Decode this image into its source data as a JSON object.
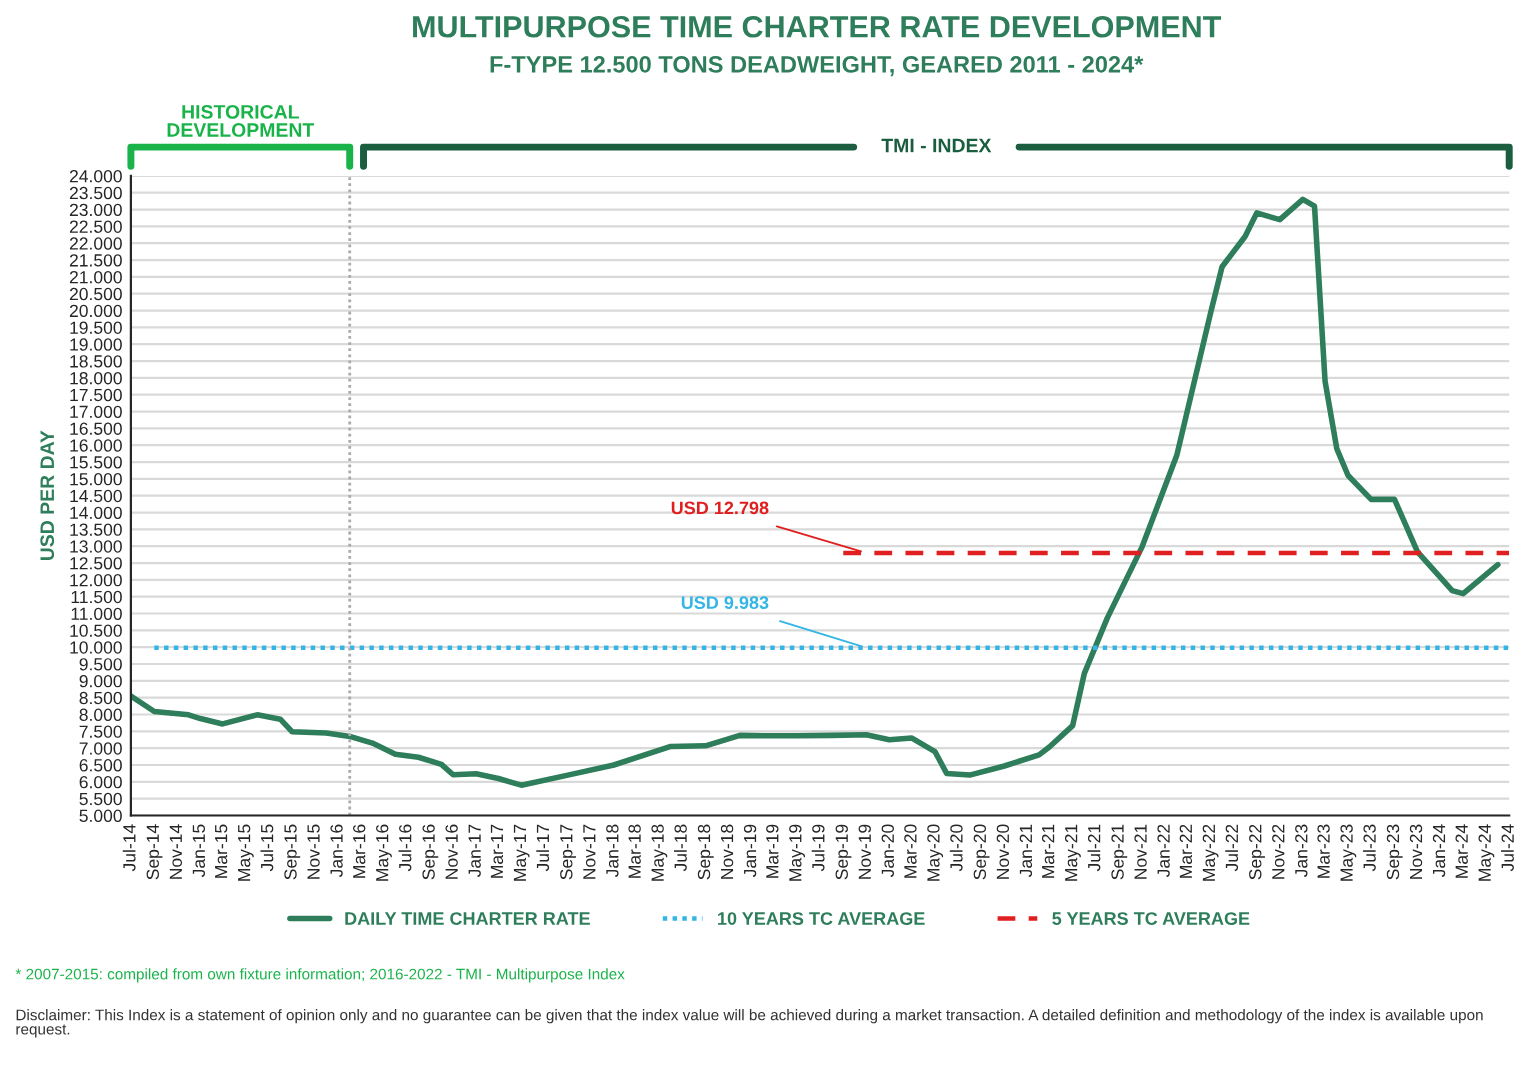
{
  "chart_data": {
    "type": "line",
    "title": "MULTIPURPOSE TIME CHARTER RATE DEVELOPMENT",
    "subtitle": "F-TYPE 12.500 TONS DEADWEIGHT, GEARED 2011 - 2024*",
    "ylabel": "USD PER DAY",
    "series": [
      {
        "name": "DAILY TIME CHARTER RATE",
        "color": "#2e7d5b",
        "line_style": "solid",
        "x": [
          "2014-07",
          "2014-09",
          "2014-12",
          "2015-01",
          "2015-03",
          "2015-06",
          "2015-08",
          "2015-09",
          "2015-12",
          "2016-02",
          "2016-04",
          "2016-06",
          "2016-08",
          "2016-10",
          "2016-11",
          "2017-01",
          "2017-03",
          "2017-05",
          "2017-09",
          "2018-01",
          "2018-06",
          "2018-09",
          "2018-12",
          "2019-02",
          "2019-05",
          "2019-08",
          "2019-11",
          "2020-01",
          "2020-03",
          "2020-05",
          "2020-06",
          "2020-08",
          "2020-11",
          "2021-02",
          "2021-03",
          "2021-05",
          "2021-06",
          "2021-08",
          "2021-11",
          "2022-02",
          "2022-05",
          "2022-06",
          "2022-08",
          "2022-09",
          "2022-11",
          "2023-01",
          "2023-02",
          "2023-03",
          "2023-04",
          "2023-05",
          "2023-07",
          "2023-09",
          "2023-11",
          "2024-02",
          "2024-03",
          "2024-06"
        ],
        "values": [
          8550,
          8090,
          7990,
          7880,
          7720,
          7990,
          7860,
          7490,
          7450,
          7350,
          7150,
          6820,
          6730,
          6520,
          6210,
          6240,
          6100,
          5900,
          6200,
          6500,
          7050,
          7070,
          7380,
          7370,
          7370,
          7380,
          7400,
          7250,
          7300,
          6900,
          6250,
          6200,
          6470,
          6800,
          7040,
          7670,
          9220,
          10870,
          12980,
          15700,
          19900,
          21300,
          22200,
          22900,
          22700,
          23300,
          23100,
          17900,
          15900,
          15100,
          14390,
          14390,
          12830,
          11680,
          11590,
          12450
        ]
      },
      {
        "name": "10 YEARS TC AVERAGE",
        "color": "#33b5e5",
        "line_style": "dotted",
        "x": [
          "2014-09",
          "2024-07"
        ],
        "values": [
          9983,
          9983
        ]
      },
      {
        "name": "5 YEARS TC AVERAGE",
        "color": "#e02020",
        "line_style": "dashed",
        "x": [
          "2019-09",
          "2024-07"
        ],
        "values": [
          12798,
          12798
        ]
      }
    ],
    "ref_lines": [
      {
        "axis": "x",
        "value": "2016-02",
        "color": "#aaaaaa",
        "line_style": "dotted"
      }
    ],
    "annotations": [
      "HISTORICAL\nDEVELOPMENT",
      "TMI - INDEX",
      "* 2007-2015: compiled from own fixture information; 2016-2022 - TMI - Multipurpose Index",
      "Disclaimer: This Index is a statement of opinion only and no guarantee can be given that the index value will be achieved during a market transaction. A detailed definition and methodology of the index is available upon request.",
      {
        "text": "USD 9.983",
        "x": "2019-11",
        "y": 9983
      },
      {
        "text": "USD 12.798",
        "x": "2019-11",
        "y": 12798
      }
    ],
    "xlim": [
      "2014-07",
      "2024-07"
    ],
    "xticks": [
      {
        "value": "2014-07",
        "label": "Jul-14"
      },
      {
        "value": "2014-09",
        "label": "Sep-14"
      },
      {
        "value": "2014-11",
        "label": "Nov-14"
      },
      {
        "value": "2015-01",
        "label": "Jan-15"
      },
      {
        "value": "2015-03",
        "label": "Mar-15"
      },
      {
        "value": "2015-05",
        "label": "May-15"
      },
      {
        "value": "2015-07",
        "label": "Jul-15"
      },
      {
        "value": "2015-09",
        "label": "Sep-15"
      },
      {
        "value": "2015-11",
        "label": "Nov-15"
      },
      {
        "value": "2016-01",
        "label": "Jan-16"
      },
      {
        "value": "2016-03",
        "label": "Mar-16"
      },
      {
        "value": "2016-05",
        "label": "May-16"
      },
      {
        "value": "2016-07",
        "label": "Jul-16"
      },
      {
        "value": "2016-09",
        "label": "Sep-16"
      },
      {
        "value": "2016-11",
        "label": "Nov-16"
      },
      {
        "value": "2017-01",
        "label": "Jan-17"
      },
      {
        "value": "2017-03",
        "label": "Mar-17"
      },
      {
        "value": "2017-05",
        "label": "May-17"
      },
      {
        "value": "2017-07",
        "label": "Jul-17"
      },
      {
        "value": "2017-09",
        "label": "Sep-17"
      },
      {
        "value": "2017-11",
        "label": "Nov-17"
      },
      {
        "value": "2018-01",
        "label": "Jan-18"
      },
      {
        "value": "2018-03",
        "label": "Mar-18"
      },
      {
        "value": "2018-05",
        "label": "May-18"
      },
      {
        "value": "2018-07",
        "label": "Jul-18"
      },
      {
        "value": "2018-09",
        "label": "Sep-18"
      },
      {
        "value": "2018-11",
        "label": "Nov-18"
      },
      {
        "value": "2019-01",
        "label": "Jan-19"
      },
      {
        "value": "2019-03",
        "label": "Mar-19"
      },
      {
        "value": "2019-05",
        "label": "May-19"
      },
      {
        "value": "2019-07",
        "label": "Jul-19"
      },
      {
        "value": "2019-09",
        "label": "Sep-19"
      },
      {
        "value": "2019-11",
        "label": "Nov-19"
      },
      {
        "value": "2020-01",
        "label": "Jan-20"
      },
      {
        "value": "2020-03",
        "label": "Mar-20"
      },
      {
        "value": "2020-05",
        "label": "May-20"
      },
      {
        "value": "2020-07",
        "label": "Jul-20"
      },
      {
        "value": "2020-09",
        "label": "Sep-20"
      },
      {
        "value": "2020-11",
        "label": "Nov-20"
      },
      {
        "value": "2021-01",
        "label": "Jan-21"
      },
      {
        "value": "2021-03",
        "label": "Mar-21"
      },
      {
        "value": "2021-05",
        "label": "May-21"
      },
      {
        "value": "2021-07",
        "label": "Jul-21"
      },
      {
        "value": "2021-09",
        "label": "Sep-21"
      },
      {
        "value": "2021-11",
        "label": "Nov-21"
      },
      {
        "value": "2022-01",
        "label": "Jan-22"
      },
      {
        "value": "2022-03",
        "label": "Mar-22"
      },
      {
        "value": "2022-05",
        "label": "May-22"
      },
      {
        "value": "2022-07",
        "label": "Jul-22"
      },
      {
        "value": "2022-09",
        "label": "Sep-22"
      },
      {
        "value": "2022-11",
        "label": "Nov-22"
      },
      {
        "value": "2023-01",
        "label": "Jan-23"
      },
      {
        "value": "2023-03",
        "label": "Mar-23"
      },
      {
        "value": "2023-05",
        "label": "May-23"
      },
      {
        "value": "2023-07",
        "label": "Jul-23"
      },
      {
        "value": "2023-09",
        "label": "Sep-23"
      },
      {
        "value": "2023-11",
        "label": "Nov-23"
      },
      {
        "value": "2024-01",
        "label": "Jan-24"
      },
      {
        "value": "2024-03",
        "label": "Mar-24"
      },
      {
        "value": "2024-05",
        "label": "May-24"
      },
      {
        "value": "2024-07",
        "label": "Jul-24"
      }
    ],
    "ylim": [
      5000,
      24000
    ],
    "yticks": [
      {
        "value": 5000,
        "label": "5.000"
      },
      {
        "value": 5500,
        "label": "5.500"
      },
      {
        "value": 6000,
        "label": "6.000"
      },
      {
        "value": 6500,
        "label": "6.500"
      },
      {
        "value": 7000,
        "label": "7.000"
      },
      {
        "value": 7500,
        "label": "7.500"
      },
      {
        "value": 8000,
        "label": "8.000"
      },
      {
        "value": 8500,
        "label": "8.500"
      },
      {
        "value": 9000,
        "label": "9.000"
      },
      {
        "value": 9500,
        "label": "9.500"
      },
      {
        "value": 10000,
        "label": "10.000"
      },
      {
        "value": 10500,
        "label": "10.500"
      },
      {
        "value": 11000,
        "label": "11.000"
      },
      {
        "value": 11500,
        "label": "11.500"
      },
      {
        "value": 12000,
        "label": "12.000"
      },
      {
        "value": 12500,
        "label": "12.500"
      },
      {
        "value": 13000,
        "label": "13.000"
      },
      {
        "value": 13500,
        "label": "13.500"
      },
      {
        "value": 14000,
        "label": "14.000"
      },
      {
        "value": 14500,
        "label": "14.500"
      },
      {
        "value": 15000,
        "label": "15.000"
      },
      {
        "value": 15500,
        "label": "15.500"
      },
      {
        "value": 16000,
        "label": "16.000"
      },
      {
        "value": 16500,
        "label": "16.500"
      },
      {
        "value": 17000,
        "label": "17.000"
      },
      {
        "value": 17500,
        "label": "17.500"
      },
      {
        "value": 18000,
        "label": "18.000"
      },
      {
        "value": 18500,
        "label": "18.500"
      },
      {
        "value": 19000,
        "label": "19.000"
      },
      {
        "value": 19500,
        "label": "19.500"
      },
      {
        "value": 20000,
        "label": "20.000"
      },
      {
        "value": 20500,
        "label": "20.500"
      },
      {
        "value": 21000,
        "label": "21.000"
      },
      {
        "value": 21500,
        "label": "21.500"
      },
      {
        "value": 22000,
        "label": "22.000"
      },
      {
        "value": 22500,
        "label": "22.500"
      },
      {
        "value": 23000,
        "label": "23.000"
      },
      {
        "value": 23500,
        "label": "23.500"
      },
      {
        "value": 24000,
        "label": "24.000"
      }
    ],
    "grid": "y",
    "legend": "bottom",
    "marker": "none"
  }
}
